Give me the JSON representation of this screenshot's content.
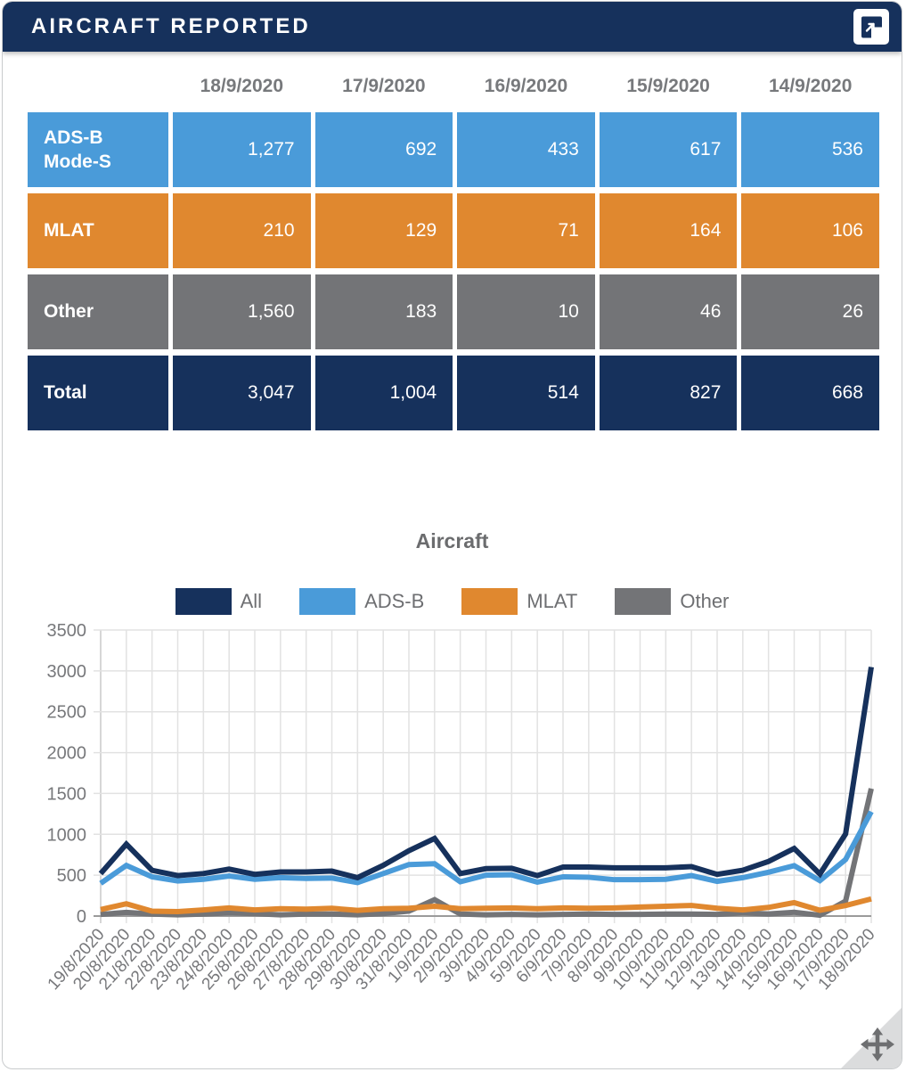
{
  "header": {
    "title": "AIRCRAFT REPORTED",
    "collapse_icon": "collapse-corner-icon"
  },
  "table": {
    "columns": [
      "18/9/2020",
      "17/9/2020",
      "16/9/2020",
      "15/9/2020",
      "14/9/2020"
    ],
    "rows": [
      {
        "label": "ADS-B Mode-S",
        "color": "#4a9bd9",
        "values": [
          "1,277",
          "692",
          "433",
          "617",
          "536"
        ]
      },
      {
        "label": "MLAT",
        "color": "#e0882f",
        "values": [
          "210",
          "129",
          "71",
          "164",
          "106"
        ]
      },
      {
        "label": "Other",
        "color": "#737477",
        "values": [
          "1,560",
          "183",
          "10",
          "46",
          "26"
        ]
      },
      {
        "label": "Total",
        "color": "#16315c",
        "values": [
          "3,047",
          "1,004",
          "514",
          "827",
          "668"
        ]
      }
    ]
  },
  "chart_data": {
    "type": "line",
    "title": "Aircraft",
    "legend_position": "top",
    "grid": true,
    "ylim": [
      0,
      3500
    ],
    "ytick_step": 500,
    "yticks": [
      0,
      500,
      1000,
      1500,
      2000,
      2500,
      3000,
      3500
    ],
    "categories": [
      "19/8/2020",
      "20/8/2020",
      "21/8/2020",
      "22/8/2020",
      "23/8/2020",
      "24/8/2020",
      "25/8/2020",
      "26/8/2020",
      "27/8/2020",
      "28/8/2020",
      "29/8/2020",
      "30/8/2020",
      "31/8/2020",
      "1/9/2020",
      "2/9/2020",
      "3/9/2020",
      "4/9/2020",
      "5/9/2020",
      "6/9/2020",
      "7/9/2020",
      "8/9/2020",
      "9/9/2020",
      "10/9/2020",
      "11/9/2020",
      "12/9/2020",
      "13/9/2020",
      "14/9/2020",
      "15/9/2020",
      "16/9/2020",
      "17/9/2020",
      "18/9/2020"
    ],
    "series": [
      {
        "name": "All",
        "color": "#16315c",
        "values": [
          520,
          880,
          560,
          495,
          520,
          575,
          510,
          540,
          540,
          550,
          470,
          620,
          800,
          950,
          520,
          580,
          585,
          495,
          600,
          600,
          590,
          590,
          590,
          605,
          510,
          560,
          668,
          827,
          514,
          1004,
          3047
        ]
      },
      {
        "name": "ADS-B",
        "color": "#4a9bd9",
        "values": [
          400,
          620,
          480,
          430,
          450,
          490,
          450,
          470,
          460,
          465,
          410,
          520,
          630,
          640,
          420,
          500,
          505,
          415,
          480,
          475,
          445,
          445,
          450,
          495,
          425,
          470,
          536,
          617,
          433,
          692,
          1277
        ]
      },
      {
        "name": "MLAT",
        "color": "#e0882f",
        "values": [
          80,
          150,
          60,
          55,
          75,
          100,
          75,
          90,
          85,
          95,
          70,
          90,
          95,
          120,
          90,
          95,
          100,
          90,
          100,
          95,
          100,
          110,
          120,
          130,
          95,
          75,
          106,
          164,
          71,
          129,
          210
        ]
      },
      {
        "name": "Other",
        "color": "#737477",
        "values": [
          20,
          45,
          25,
          15,
          25,
          40,
          30,
          15,
          25,
          25,
          15,
          30,
          60,
          200,
          25,
          15,
          20,
          15,
          20,
          25,
          20,
          20,
          25,
          25,
          20,
          40,
          26,
          46,
          10,
          183,
          1560
        ]
      }
    ]
  },
  "drag_handle": {
    "icon": "move-icon"
  }
}
